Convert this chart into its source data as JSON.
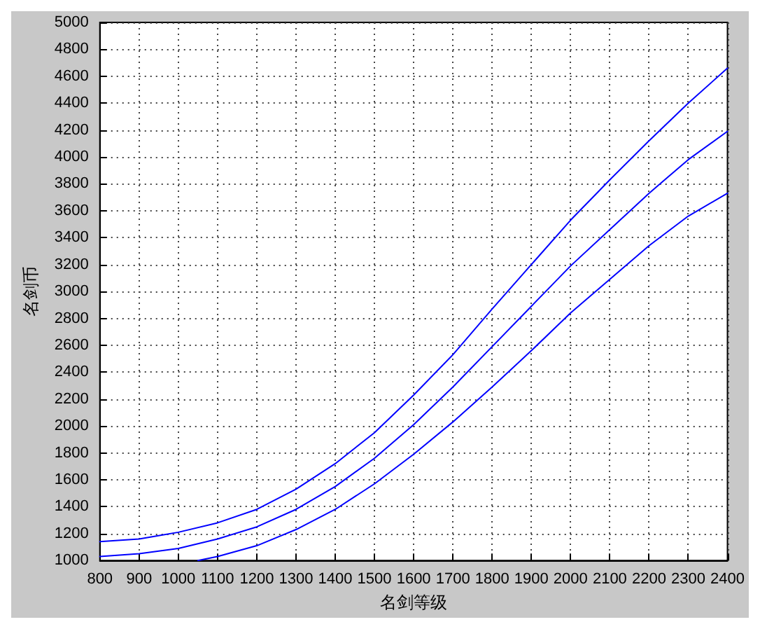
{
  "chart_data": {
    "type": "line",
    "xlabel": "名剑等级",
    "ylabel": "名剑币",
    "x": [
      800,
      900,
      1000,
      1100,
      1200,
      1300,
      1400,
      1500,
      1600,
      1700,
      1800,
      1900,
      2000,
      2100,
      2200,
      2300,
      2400
    ],
    "series": [
      {
        "color": "#0000ff",
        "values": [
          1140,
          1160,
          1210,
          1280,
          1380,
          1530,
          1720,
          1950,
          2230,
          2530,
          2870,
          3200,
          3530,
          3830,
          4120,
          4400,
          4660
        ]
      },
      {
        "color": "#0000ff",
        "values": [
          1030,
          1050,
          1090,
          1160,
          1250,
          1380,
          1550,
          1760,
          2010,
          2290,
          2590,
          2890,
          3190,
          3460,
          3730,
          3980,
          4190
        ]
      },
      {
        "color": "#0000ff",
        "x": [
          1050,
          1100,
          1200,
          1300,
          1400,
          1500,
          1600,
          1700,
          1800,
          1900,
          2000,
          2100,
          2200,
          2300,
          2400
        ],
        "values": [
          1000,
          1030,
          1110,
          1230,
          1380,
          1570,
          1790,
          2030,
          2290,
          2560,
          2840,
          3090,
          3340,
          3560,
          3730
        ]
      }
    ],
    "xlim": [
      800,
      2400
    ],
    "xticks": [
      800,
      900,
      1000,
      1100,
      1200,
      1300,
      1400,
      1500,
      1600,
      1700,
      1800,
      1900,
      2000,
      2100,
      2200,
      2300,
      2400
    ],
    "ylim": [
      1000,
      5000
    ],
    "yticks": [
      1000,
      1200,
      1400,
      1600,
      1800,
      2000,
      2200,
      2400,
      2600,
      2800,
      3000,
      3200,
      3400,
      3600,
      3800,
      4000,
      4200,
      4400,
      4600,
      4800,
      5000
    ],
    "grid": true,
    "marker": "none",
    "line_style": "solid"
  }
}
